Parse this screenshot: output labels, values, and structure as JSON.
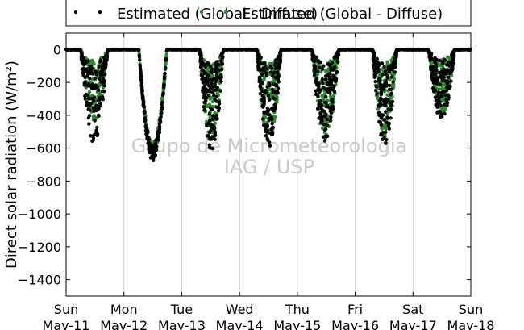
{
  "chart_data": {
    "type": "scatter",
    "ylabel": "Direct solar radiation (W/m²)",
    "ylim": [
      -1500,
      100
    ],
    "yticks": [
      0,
      -200,
      -400,
      -600,
      -800,
      -1000,
      -1200,
      -1400
    ],
    "xlim": [
      0,
      7
    ],
    "xtick_labels": [
      [
        "Sun",
        "May-11"
      ],
      [
        "Mon",
        "May-12"
      ],
      [
        "Tue",
        "May-13"
      ],
      [
        "Wed",
        "May-14"
      ],
      [
        "Thu",
        "May-15"
      ],
      [
        "Fri",
        "May-16"
      ],
      [
        "Sat",
        "May-17"
      ],
      [
        "Sun",
        "May-18"
      ]
    ],
    "grid": "vertical",
    "legend": {
      "placement": "top-center",
      "entries": [
        {
          "label": "Estimated (Global - Diffuse)",
          "marker": "dot"
        },
        {
          "label": "Estimated (Global - Diffuse)",
          "marker": "dot"
        }
      ]
    },
    "watermark": [
      "Grupo de Micrometeorologia",
      "IAG / USP"
    ],
    "series": [
      {
        "color": "#000000",
        "days": [
          {
            "sunrise": 0.25,
            "sunset": 0.72,
            "min": -560
          },
          {
            "sunrise": 0.26,
            "sunset": 0.74,
            "min": -665
          },
          {
            "sunrise": 0.31,
            "sunset": 0.72,
            "min": -620
          },
          {
            "sunrise": 0.3,
            "sunset": 0.72,
            "min": -580
          },
          {
            "sunrise": 0.25,
            "sunset": 0.72,
            "min": -550
          },
          {
            "sunrise": 0.3,
            "sunset": 0.72,
            "min": -570
          },
          {
            "sunrise": 0.27,
            "sunset": 0.72,
            "min": -430
          }
        ]
      },
      {
        "color": "#2a8a2a",
        "days": [
          {
            "sunrise": 0.25,
            "sunset": 0.72,
            "min": -430
          },
          {
            "sunrise": 0.26,
            "sunset": 0.74,
            "min": -640
          },
          {
            "sunrise": 0.31,
            "sunset": 0.72,
            "min": -580
          },
          {
            "sunrise": 0.3,
            "sunset": 0.72,
            "min": -560
          },
          {
            "sunrise": 0.25,
            "sunset": 0.72,
            "min": -540
          },
          {
            "sunrise": 0.3,
            "sunset": 0.72,
            "min": -520
          },
          {
            "sunrise": 0.27,
            "sunset": 0.72,
            "min": -390
          }
        ]
      }
    ]
  }
}
